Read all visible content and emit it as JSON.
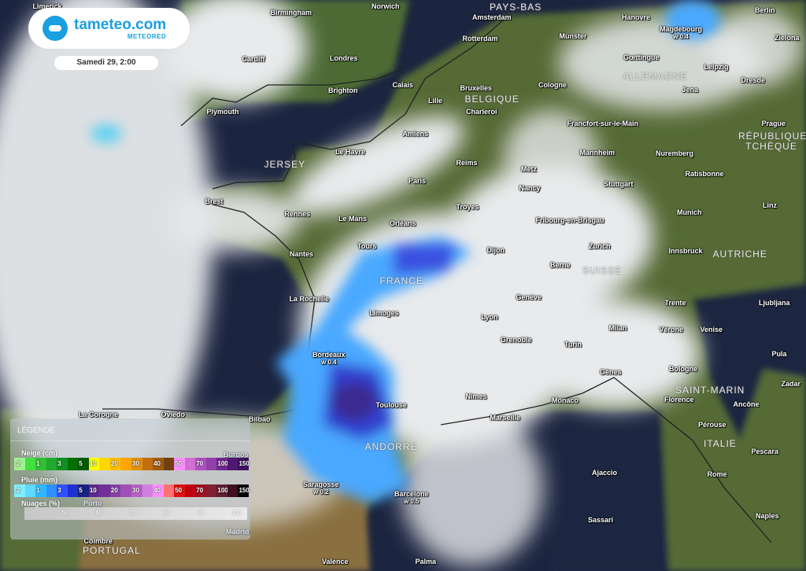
{
  "header": {
    "brand": "tameteo.com",
    "brand_sub": "METEORED",
    "datetime": "Samedi 29, 2:00"
  },
  "colors": {
    "brand": "#1a9fe0",
    "sea": "#1c2540",
    "land": "#4f6a32",
    "cloud": "#e6e8ea",
    "rain": "#3a6dff"
  },
  "legend": {
    "title": "LÉGENDE",
    "snow": {
      "label": "Neige (cm)",
      "colors": [
        "#a0f090",
        "#40e040",
        "#30c030",
        "#20a830",
        "#109020",
        "#007000",
        "#005a00",
        "#ffff00",
        "#ffd700",
        "#ffc000",
        "#ffa500",
        "#e09010",
        "#c07010",
        "#a05a10",
        "#704010",
        "#ff90ff",
        "#d070d0",
        "#b050c0",
        "#9040a8",
        "#702890",
        "#501870",
        "#401060"
      ],
      "ticks": {
        "0": ".2",
        "2": "1",
        "4": "3",
        "6": "5",
        "7": "10",
        "9": "20",
        "11": "30",
        "13": "40",
        "15": "50",
        "17": "70",
        "19": "100",
        "21": "150"
      }
    },
    "rain": {
      "label": "Pluie (mm)",
      "colors": [
        "#80f0ff",
        "#60d8ff",
        "#30b8ff",
        "#3090ff",
        "#3050ff",
        "#2030d0",
        "#182080",
        "#602890",
        "#703098",
        "#8840a8",
        "#a050b8",
        "#b860c8",
        "#d080e0",
        "#ff90ff",
        "#ff7070",
        "#e01010",
        "#c00010",
        "#a01020",
        "#802030",
        "#602030",
        "#401020",
        "#000000"
      ],
      "ticks": {
        "0": ".2",
        "2": "1",
        "4": "3",
        "6": "5",
        "7": "10",
        "9": "20",
        "11": "30",
        "13": "40",
        "15": "50",
        "17": "70",
        "19": "100",
        "21": "150"
      }
    },
    "clouds": {
      "label": "Nuages (%)",
      "ticks": [
        "0",
        "50",
        "60",
        "70",
        "80",
        "90",
        "100"
      ]
    }
  },
  "cities": [
    {
      "name": "Limerick"
    },
    {
      "name": "Birmingham"
    },
    {
      "name": "Norwich"
    },
    {
      "name": "Amsterdam"
    },
    {
      "name": "Hanovre"
    },
    {
      "name": "Berlin"
    },
    {
      "name": "Cardiff"
    },
    {
      "name": "Londres"
    },
    {
      "name": "Rotterdam"
    },
    {
      "name": "Münster"
    },
    {
      "name": "Magdebourg",
      "value": "w 0.4"
    },
    {
      "name": "Zielona"
    },
    {
      "name": "Plymouth"
    },
    {
      "name": "Brighton"
    },
    {
      "name": "Calais"
    },
    {
      "name": "Bruxelles"
    },
    {
      "name": "Lille"
    },
    {
      "name": "Charleroi"
    },
    {
      "name": "Cologne"
    },
    {
      "name": "Gœttingue"
    },
    {
      "name": "Leipzig"
    },
    {
      "name": "Jena"
    },
    {
      "name": "Dresde"
    },
    {
      "name": "Amiens"
    },
    {
      "name": "Le Havre"
    },
    {
      "name": "Reims"
    },
    {
      "name": "Francfort-sur-le-Main"
    },
    {
      "name": "Mannheim"
    },
    {
      "name": "Nuremberg"
    },
    {
      "name": "Ratisbonne"
    },
    {
      "name": "Prague"
    },
    {
      "name": "Metz"
    },
    {
      "name": "Nancy"
    },
    {
      "name": "Stuttgart"
    },
    {
      "name": "Munich"
    },
    {
      "name": "Linz"
    },
    {
      "name": "Paris"
    },
    {
      "name": "Troyes"
    },
    {
      "name": "Brest"
    },
    {
      "name": "Rennes"
    },
    {
      "name": "Le Mans"
    },
    {
      "name": "Orléans"
    },
    {
      "name": "Fribourg-en-Brisgau"
    },
    {
      "name": "Tours"
    },
    {
      "name": "Dijon"
    },
    {
      "name": "Zurich"
    },
    {
      "name": "Innsbruck"
    },
    {
      "name": "Nantes"
    },
    {
      "name": "Berne"
    },
    {
      "name": "Trente"
    },
    {
      "name": "Ljubljana"
    },
    {
      "name": "La Rochelle"
    },
    {
      "name": "Limoges"
    },
    {
      "name": "Genève"
    },
    {
      "name": "Lyon"
    },
    {
      "name": "Milan"
    },
    {
      "name": "Vérone"
    },
    {
      "name": "Venise"
    },
    {
      "name": "Grenoble"
    },
    {
      "name": "Turin"
    },
    {
      "name": "Pula"
    },
    {
      "name": "Bordeaux",
      "value": "w 0.4"
    },
    {
      "name": "Gênes"
    },
    {
      "name": "Bologne"
    },
    {
      "name": "Zadar"
    },
    {
      "name": "Nîmes"
    },
    {
      "name": "Toulouse"
    },
    {
      "name": "Monaco"
    },
    {
      "name": "Marseille"
    },
    {
      "name": "Florence"
    },
    {
      "name": "Ancône"
    },
    {
      "name": "La Corogne"
    },
    {
      "name": "Oviedo"
    },
    {
      "name": "Bilbao"
    },
    {
      "name": "Pérouse"
    },
    {
      "name": "Pescara"
    },
    {
      "name": "Burgos"
    },
    {
      "name": "Saragosse",
      "value": "w 0.2"
    },
    {
      "name": "Barcelone",
      "value": "w 0.5"
    },
    {
      "name": "Ajaccio"
    },
    {
      "name": "Rome"
    },
    {
      "name": "Porto"
    },
    {
      "name": "Sassari"
    },
    {
      "name": "Naples"
    },
    {
      "name": "Coimbre"
    },
    {
      "name": "Madrid"
    },
    {
      "name": "Valence"
    },
    {
      "name": "Palma"
    }
  ],
  "countries": [
    "PAYS-BAS",
    "BELGIQUE",
    "ALLEMAGNE",
    "JERSEY",
    "RÉPUBLIQUE TCHÈQUE",
    "AUTRICHE",
    "FRANCE",
    "SUISSE",
    "SAINT-MARIN",
    "ITALIE",
    "ANDORRE",
    "PORTUGAL"
  ]
}
